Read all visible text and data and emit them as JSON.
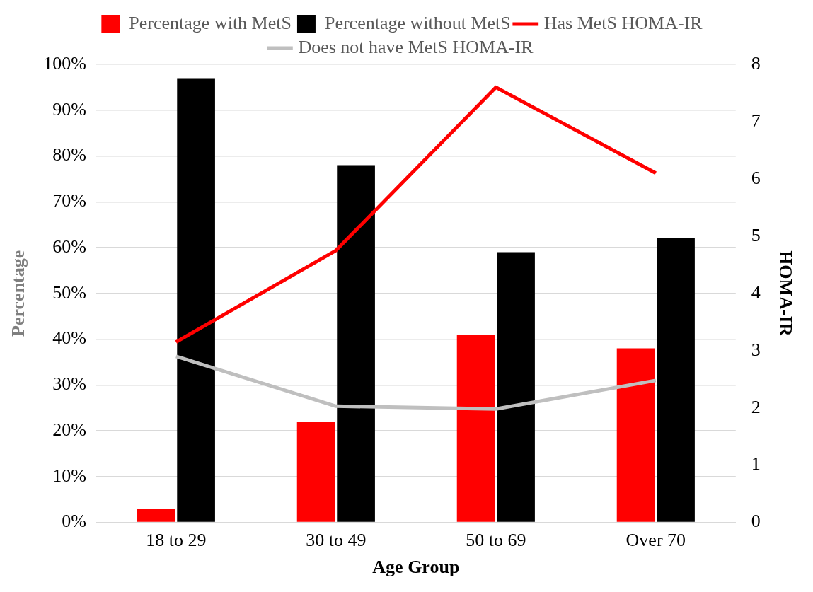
{
  "chart_data": {
    "type": "bar",
    "xlabel": "Age Group",
    "ylabel": "Percentage",
    "y2label": "HOMA-IR",
    "categories": [
      "18 to 29",
      "30 to 49",
      "50 to 69",
      "Over 70"
    ],
    "series": [
      {
        "name": "Percentage with MetS",
        "color": "#ff0000",
        "values": [
          3,
          22,
          41,
          38
        ]
      },
      {
        "name": "Percentage without MetS",
        "color": "#000000",
        "values": [
          97,
          78,
          59,
          62
        ]
      },
      {
        "name": "Has MetS HOMA-IR",
        "type": "line",
        "axis": "y2",
        "color": "#ff0000",
        "values": [
          3.15,
          4.75,
          7.6,
          6.1
        ]
      },
      {
        "name": "Does not have MetS HOMA-IR",
        "type": "line",
        "axis": "y2",
        "color": "#bfbfbf",
        "values": [
          2.9,
          2.03,
          1.98,
          2.48
        ]
      }
    ],
    "ylim": [
      0,
      100
    ],
    "yticks": [
      {
        "value": 0,
        "label": "0%"
      },
      {
        "value": 10,
        "label": "10%"
      },
      {
        "value": 20,
        "label": "20%"
      },
      {
        "value": 30,
        "label": "30%"
      },
      {
        "value": 40,
        "label": "40%"
      },
      {
        "value": 50,
        "label": "50%"
      },
      {
        "value": 60,
        "label": "60%"
      },
      {
        "value": 70,
        "label": "70%"
      },
      {
        "value": 80,
        "label": "80%"
      },
      {
        "value": 90,
        "label": "90%"
      },
      {
        "value": 100,
        "label": "100%"
      }
    ],
    "y2lim": [
      0,
      8
    ],
    "y2ticks": [
      0,
      1,
      2,
      3,
      4,
      5,
      6,
      7,
      8
    ],
    "grid": "y",
    "legend": "top",
    "marker": "none",
    "line_style": "solid"
  }
}
